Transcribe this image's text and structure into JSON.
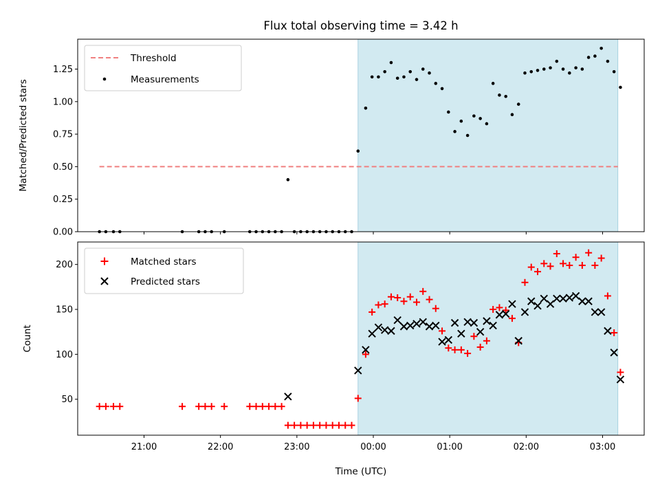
{
  "chart_data": [
    {
      "type": "scatter",
      "title": "Flux total observing time = 3.42 h",
      "xlabel": "",
      "ylabel": "Matched/Predicted stars",
      "ylim": [
        0,
        1.48
      ],
      "yticks": [
        0.0,
        0.25,
        0.5,
        0.75,
        1.0,
        1.25
      ],
      "ytick_labels": [
        "0.00",
        "0.25",
        "0.50",
        "0.75",
        "1.00",
        "1.25"
      ],
      "shaded_region": [
        "23:48",
        "03:12"
      ],
      "threshold": {
        "name": "Threshold",
        "value": 0.5,
        "x_range": [
          "20:25",
          "03:12"
        ],
        "color": "#f07f7f"
      },
      "legend": {
        "position": "upper-left",
        "entries": [
          "Threshold",
          "Measurements"
        ]
      },
      "series": [
        {
          "name": "Measurements",
          "color": "#000000",
          "marker": "dot",
          "x": [
            "20:25",
            "20:30",
            "20:36",
            "20:41",
            "21:30",
            "21:43",
            "21:48",
            "21:53",
            "22:03",
            "22:23",
            "22:28",
            "22:33",
            "22:38",
            "22:43",
            "22:48",
            "22:53",
            "22:58",
            "23:03",
            "23:08",
            "23:13",
            "23:18",
            "23:23",
            "23:28",
            "23:33",
            "23:38",
            "23:43",
            "23:48",
            "23:54",
            "23:59",
            "00:04",
            "00:09",
            "00:14",
            "00:19",
            "00:24",
            "00:29",
            "00:34",
            "00:39",
            "00:44",
            "00:49",
            "00:54",
            "00:59",
            "01:04",
            "01:09",
            "01:14",
            "01:19",
            "01:24",
            "01:29",
            "01:34",
            "01:39",
            "01:44",
            "01:49",
            "01:54",
            "01:59",
            "02:04",
            "02:09",
            "02:14",
            "02:19",
            "02:24",
            "02:29",
            "02:34",
            "02:39",
            "02:44",
            "02:49",
            "02:54",
            "02:59",
            "03:04",
            "03:09",
            "03:14"
          ],
          "y": [
            0,
            0,
            0,
            0,
            0,
            0,
            0,
            0,
            0,
            0,
            0,
            0,
            0,
            0,
            0,
            0.4,
            0,
            0,
            0,
            0,
            0,
            0,
            0,
            0,
            0,
            0,
            0.62,
            0.95,
            1.19,
            1.19,
            1.23,
            1.3,
            1.18,
            1.19,
            1.23,
            1.17,
            1.25,
            1.22,
            1.14,
            1.1,
            0.92,
            0.77,
            0.85,
            0.74,
            0.89,
            0.87,
            0.83,
            1.14,
            1.05,
            1.04,
            0.9,
            0.98,
            1.22,
            1.23,
            1.24,
            1.25,
            1.26,
            1.31,
            1.25,
            1.22,
            1.26,
            1.25,
            1.34,
            1.35,
            1.41,
            1.31,
            1.23,
            1.11
          ]
        }
      ]
    },
    {
      "type": "scatter",
      "title": "",
      "xlabel": "Time (UTC)",
      "ylabel": "Count",
      "ylim": [
        10,
        225
      ],
      "yticks": [
        50,
        100,
        150,
        200
      ],
      "ytick_labels": [
        "50",
        "100",
        "150",
        "200"
      ],
      "xticks": [
        "21:00",
        "22:00",
        "23:00",
        "00:00",
        "01:00",
        "02:00",
        "03:00"
      ],
      "shaded_region": [
        "23:48",
        "03:12"
      ],
      "legend": {
        "position": "upper-left",
        "entries": [
          "Matched stars",
          "Predicted stars"
        ]
      },
      "series": [
        {
          "name": "Matched stars",
          "color": "#ff0000",
          "marker": "plus",
          "x": [
            "20:25",
            "20:30",
            "20:36",
            "20:41",
            "21:30",
            "21:43",
            "21:48",
            "21:53",
            "22:03",
            "22:23",
            "22:28",
            "22:33",
            "22:38",
            "22:43",
            "22:48",
            "22:53",
            "22:58",
            "23:03",
            "23:08",
            "23:13",
            "23:18",
            "23:23",
            "23:28",
            "23:33",
            "23:38",
            "23:43",
            "23:48",
            "23:54",
            "23:59",
            "00:04",
            "00:09",
            "00:14",
            "00:19",
            "00:24",
            "00:29",
            "00:34",
            "00:39",
            "00:44",
            "00:49",
            "00:54",
            "00:59",
            "01:04",
            "01:09",
            "01:14",
            "01:19",
            "01:24",
            "01:29",
            "01:34",
            "01:39",
            "01:44",
            "01:49",
            "01:54",
            "01:59",
            "02:04",
            "02:09",
            "02:14",
            "02:19",
            "02:24",
            "02:29",
            "02:34",
            "02:39",
            "02:44",
            "02:49",
            "02:54",
            "02:59",
            "03:04",
            "03:09",
            "03:14"
          ],
          "y": [
            42,
            42,
            42,
            42,
            42,
            42,
            42,
            42,
            42,
            42,
            42,
            42,
            42,
            42,
            42,
            21,
            21,
            21,
            21,
            21,
            21,
            21,
            21,
            21,
            21,
            21,
            51,
            100,
            147,
            155,
            156,
            164,
            163,
            159,
            164,
            158,
            170,
            161,
            151,
            126,
            107,
            105,
            105,
            101,
            120,
            108,
            115,
            150,
            152,
            149,
            140,
            113,
            180,
            197,
            192,
            201,
            198,
            212,
            201,
            199,
            208,
            199,
            213,
            199,
            207,
            165,
            124,
            80
          ]
        },
        {
          "name": "Predicted stars",
          "color": "#000000",
          "marker": "x",
          "x": [
            "22:53",
            "23:48",
            "23:54",
            "23:59",
            "00:04",
            "00:09",
            "00:14",
            "00:19",
            "00:24",
            "00:29",
            "00:34",
            "00:39",
            "00:44",
            "00:49",
            "00:54",
            "00:59",
            "01:04",
            "01:09",
            "01:14",
            "01:19",
            "01:24",
            "01:29",
            "01:34",
            "01:39",
            "01:44",
            "01:49",
            "01:54",
            "01:59",
            "02:04",
            "02:09",
            "02:14",
            "02:19",
            "02:24",
            "02:29",
            "02:34",
            "02:39",
            "02:44",
            "02:49",
            "02:54",
            "02:59",
            "03:04",
            "03:09",
            "03:14"
          ],
          "y": [
            53,
            82,
            105,
            123,
            130,
            127,
            126,
            138,
            131,
            132,
            134,
            136,
            131,
            132,
            114,
            116,
            135,
            123,
            136,
            135,
            125,
            137,
            132,
            144,
            145,
            156,
            115,
            147,
            159,
            154,
            162,
            156,
            162,
            162,
            163,
            165,
            159,
            159,
            147,
            147,
            126,
            102,
            72
          ]
        }
      ]
    }
  ]
}
